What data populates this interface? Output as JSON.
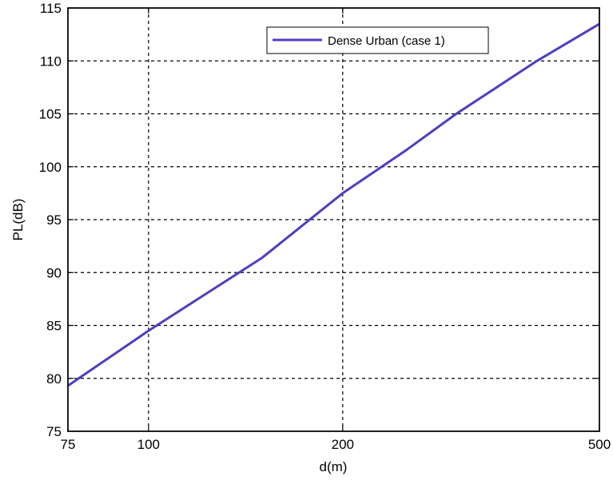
{
  "chart_data": {
    "type": "line",
    "title": "",
    "xlabel": "d(m)",
    "ylabel": "PL(dB)",
    "x_scale": "log",
    "xlim": [
      75,
      500
    ],
    "ylim": [
      75,
      115
    ],
    "x_ticks": [
      75,
      100,
      200,
      500
    ],
    "x_tick_labels": [
      "75",
      "100",
      "200",
      "500"
    ],
    "y_ticks": [
      75,
      80,
      85,
      90,
      95,
      100,
      105,
      110,
      115
    ],
    "y_tick_labels": [
      "75",
      "80",
      "85",
      "90",
      "95",
      "100",
      "105",
      "110",
      "115"
    ],
    "grid": true,
    "legend_position": "top-right",
    "series": [
      {
        "name": "Dense Urban (case 1)",
        "color": "#4b3fbf",
        "x": [
          75,
          100,
          150,
          200,
          250,
          300,
          400,
          500
        ],
        "y": [
          79.3,
          84.5,
          91.4,
          97.5,
          101.5,
          105.0,
          110.0,
          113.5
        ]
      }
    ]
  }
}
